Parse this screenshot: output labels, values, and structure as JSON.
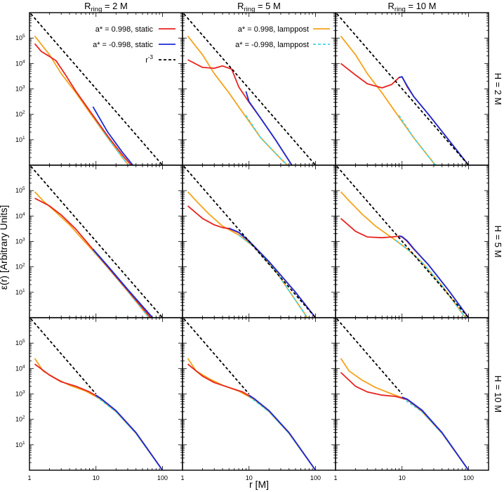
{
  "figure": {
    "ylabel": "ε(r) [Arbitrary Units]",
    "xlabel": "r [M]",
    "column_titles": [
      {
        "main": "R",
        "sub": "ring",
        "rest": " = 2 M"
      },
      {
        "main": "R",
        "sub": "ring",
        "rest": " = 5 M"
      },
      {
        "main": "R",
        "sub": "ring",
        "rest": " = 10 M"
      }
    ],
    "row_titles": [
      "H = 2 M",
      "H = 5 M",
      "H = 10 M"
    ],
    "x_ticks": [
      "1",
      "10",
      "100"
    ],
    "y_ticks": [
      {
        "base": "10",
        "exp": "5"
      },
      {
        "base": "10",
        "exp": "4"
      },
      {
        "base": "10",
        "exp": "3"
      },
      {
        "base": "10",
        "exp": "2"
      },
      {
        "base": "10",
        "exp": "1"
      }
    ]
  },
  "legend": [
    {
      "label": "a* = 0.998, static",
      "color": "#e8231f",
      "style": "solid"
    },
    {
      "label": "a* = -0.998, static",
      "color": "#1a2bd6",
      "style": "solid"
    },
    {
      "label": "a* = 0.998, lamppost",
      "color": "#f5a21a",
      "style": "solid"
    },
    {
      "label": "a* = -0.998, lamppost",
      "color": "#3fd6e0",
      "style": "dashed"
    },
    {
      "label": "r",
      "sup": "-3",
      "color": "#000000",
      "style": "dashed"
    }
  ],
  "chart_data": {
    "type": "line",
    "xscale": "log",
    "yscale": "log",
    "xlim": [
      1,
      200
    ],
    "ylim": [
      1,
      1000000
    ],
    "xlabel": "r [M]",
    "ylabel": "ε(r) [Arbitrary Units]",
    "panels": [
      {
        "R_ring": 2,
        "H": 2,
        "series": [
          {
            "name": "a* = 0.998, static",
            "x": [
              1.2,
              1.5,
              2,
              2.5,
              3.5,
              5,
              8,
              15,
              25,
              40
            ],
            "y": [
              60000,
              30000,
              19000,
              13000,
              3500,
              800,
              140,
              14,
              2.5,
              0.6
            ]
          },
          {
            "name": "a* = -0.998, static",
            "x": [
              9,
              15,
              25,
              40
            ],
            "y": [
              200,
              20,
              3.2,
              0.7
            ]
          },
          {
            "name": "a* = 0.998, lamppost",
            "x": [
              1.2,
              2,
              3,
              5,
              8,
              15,
              25,
              38
            ],
            "y": [
              120000,
              22000,
              4000,
              700,
              120,
              12,
              2,
              0.5
            ]
          },
          {
            "name": "a* = -0.998, lamppost",
            "x": [
              9,
              15,
              25,
              38
            ],
            "y": [
              90,
              12,
              2,
              0.5
            ]
          },
          {
            "name": "r^-3",
            "x": [
              1.05,
              100
            ],
            "y": [
              900000,
              1
            ]
          }
        ]
      },
      {
        "R_ring": 5,
        "H": 2,
        "series": [
          {
            "name": "a* = 0.998, static",
            "x": [
              1.2,
              2,
              3,
              4,
              5.5,
              7,
              10,
              15,
              25,
              50
            ],
            "y": [
              14000,
              7000,
              6500,
              8000,
              6000,
              1200,
              300,
              70,
              10,
              0.6
            ]
          },
          {
            "name": "a* = -0.998, static",
            "x": [
              9,
              10,
              15,
              25,
              50
            ],
            "y": [
              800,
              320,
              70,
              10,
              0.6
            ]
          },
          {
            "name": "a* = 0.998, lamppost",
            "x": [
              1.2,
              2,
              3,
              5,
              8,
              15,
              30,
              55
            ],
            "y": [
              120000,
              22000,
              4000,
              700,
              120,
              12,
              1.8,
              0.4
            ]
          },
          {
            "name": "a* = -0.998, lamppost",
            "x": [
              9,
              15,
              30,
              55
            ],
            "y": [
              90,
              12,
              1.8,
              0.4
            ]
          },
          {
            "name": "r^-3",
            "x": [
              1.05,
              100
            ],
            "y": [
              900000,
              1
            ]
          }
        ]
      },
      {
        "R_ring": 10,
        "H": 2,
        "series": [
          {
            "name": "a* = 0.998, static",
            "x": [
              1.2,
              2,
              3,
              5,
              7,
              9,
              10,
              12,
              15,
              25,
              50,
              100
            ],
            "y": [
              10000,
              3500,
              1600,
              1100,
              1500,
              2800,
              3000,
              1200,
              500,
              100,
              10,
              1
            ]
          },
          {
            "name": "a* = -0.998, static",
            "x": [
              9,
              10,
              12,
              15,
              25,
              50,
              100
            ],
            "y": [
              2800,
              3000,
              1300,
              500,
              100,
              10,
              1
            ]
          },
          {
            "name": "a* = 0.998, lamppost",
            "x": [
              1.2,
              2,
              3,
              5,
              8,
              15,
              30,
              40
            ],
            "y": [
              120000,
              22000,
              4000,
              700,
              120,
              12,
              1.2,
              0.6
            ]
          },
          {
            "name": "a* = -0.998, lamppost",
            "x": [
              9,
              15,
              30,
              40
            ],
            "y": [
              90,
              12,
              1.2,
              0.6
            ]
          },
          {
            "name": "r^-3",
            "x": [
              1.05,
              100
            ],
            "y": [
              900000,
              1
            ]
          }
        ]
      },
      {
        "R_ring": 2,
        "H": 5,
        "series": [
          {
            "name": "a* = 0.998, static",
            "x": [
              1.2,
              2,
              3,
              5,
              8,
              15,
              30,
              75
            ],
            "y": [
              50000,
              25000,
              11000,
              3000,
              700,
              100,
              12,
              0.7
            ]
          },
          {
            "name": "a* = -0.998, static",
            "x": [
              9,
              15,
              30,
              80
            ],
            "y": [
              500,
              110,
              13,
              0.7
            ]
          },
          {
            "name": "a* = 0.998, lamppost",
            "x": [
              1.2,
              1.6,
              2.5,
              4,
              8,
              15,
              30,
              70
            ],
            "y": [
              90000,
              40000,
              14000,
              4500,
              600,
              95,
              11,
              0.7
            ]
          },
          {
            "name": "a* = -0.998, lamppost",
            "x": [
              9,
              15,
              30,
              70
            ],
            "y": [
              450,
              95,
              11,
              0.7
            ]
          },
          {
            "name": "r^-3",
            "x": [
              1.05,
              100
            ],
            "y": [
              900000,
              1
            ]
          }
        ]
      },
      {
        "R_ring": 5,
        "H": 5,
        "series": [
          {
            "name": "a* = 0.998, static",
            "x": [
              1.2,
              2,
              3,
              4,
              5,
              7,
              10,
              20,
              50,
              100
            ],
            "y": [
              25000,
              8000,
              4500,
              3500,
              3200,
              2200,
              1000,
              160,
              10,
              1
            ]
          },
          {
            "name": "a* = -0.998, static",
            "x": [
              5,
              7,
              10,
              20,
              50,
              100
            ],
            "y": [
              3300,
              2300,
              1050,
              160,
              10,
              1
            ]
          },
          {
            "name": "a* = 0.998, lamppost",
            "x": [
              1.2,
              1.6,
              2.5,
              4,
              7,
              12,
              25,
              80
            ],
            "y": [
              90000,
              40000,
              12000,
              4000,
              1800,
              600,
              70,
              0.8
            ]
          },
          {
            "name": "a* = -0.998, lamppost",
            "x": [
              7,
              12,
              25,
              80
            ],
            "y": [
              1800,
              600,
              70,
              0.8
            ]
          },
          {
            "name": "r^-3",
            "x": [
              1.05,
              100
            ],
            "y": [
              900000,
              1
            ]
          }
        ]
      },
      {
        "R_ring": 10,
        "H": 5,
        "series": [
          {
            "name": "a* = 0.998, static",
            "x": [
              1.2,
              2,
              3,
              5,
              7,
              9,
              10,
              12,
              15,
              25,
              50,
              100
            ],
            "y": [
              8000,
              2500,
              1500,
              1400,
              1500,
              1600,
              1500,
              1000,
              500,
              120,
              12,
              1
            ]
          },
          {
            "name": "a* = -0.998, static",
            "x": [
              9,
              10,
              12,
              15,
              25,
              50,
              100
            ],
            "y": [
              1650,
              1550,
              1050,
              520,
              120,
              12,
              1
            ]
          },
          {
            "name": "a* = 0.998, lamppost",
            "x": [
              1.2,
              1.6,
              2.5,
              4,
              8,
              12,
              20,
              40,
              90
            ],
            "y": [
              90000,
              40000,
              12000,
              4000,
              1100,
              500,
              150,
              18,
              1
            ]
          },
          {
            "name": "a* = -0.998, lamppost",
            "x": [
              8,
              12,
              20,
              40,
              90
            ],
            "y": [
              1100,
              500,
              150,
              18,
              1
            ]
          },
          {
            "name": "r^-3",
            "x": [
              1.05,
              100
            ],
            "y": [
              900000,
              1
            ]
          }
        ]
      },
      {
        "R_ring": 2,
        "H": 10,
        "series": [
          {
            "name": "a* = 0.998, static",
            "x": [
              1.2,
              2,
              3,
              5,
              8,
              12,
              20,
              40,
              100
            ],
            "y": [
              15000,
              5500,
              3000,
              2000,
              1200,
              650,
              220,
              30,
              1
            ]
          },
          {
            "name": "a* = -0.998, static",
            "x": [
              10,
              12,
              20,
              40,
              110
            ],
            "y": [
              900,
              650,
              220,
              30,
              0.7
            ]
          },
          {
            "name": "a* = 0.998, lamppost",
            "x": [
              1.2,
              1.6,
              2.5,
              4,
              7,
              12,
              20,
              40,
              100
            ],
            "y": [
              25000,
              8000,
              4000,
              2200,
              1300,
              600,
              200,
              28,
              1
            ]
          },
          {
            "name": "a* = -0.998, lamppost",
            "x": [
              10,
              20,
              40,
              100
            ],
            "y": [
              800,
              200,
              28,
              1
            ]
          },
          {
            "name": "r^-3",
            "x": [
              1.05,
              10
            ],
            "y": [
              900000,
              1000
            ]
          }
        ]
      },
      {
        "R_ring": 5,
        "H": 10,
        "series": [
          {
            "name": "a* = 0.998, static",
            "x": [
              1.2,
              2,
              3,
              5,
              8,
              12,
              20,
              40,
              100
            ],
            "y": [
              15000,
              5000,
              2800,
              1800,
              1200,
              650,
              220,
              30,
              1
            ]
          },
          {
            "name": "a* = -0.998, static",
            "x": [
              10,
              12,
              20,
              40,
              110
            ],
            "y": [
              900,
              650,
              220,
              30,
              0.7
            ]
          },
          {
            "name": "a* = 0.998, lamppost",
            "x": [
              1.2,
              1.6,
              2.5,
              4,
              7,
              12,
              20,
              40,
              100
            ],
            "y": [
              25000,
              8000,
              4000,
              2200,
              1300,
              600,
              200,
              28,
              1
            ]
          },
          {
            "name": "a* = -0.998, lamppost",
            "x": [
              10,
              20,
              40,
              100
            ],
            "y": [
              800,
              200,
              28,
              1
            ]
          },
          {
            "name": "r^-3",
            "x": [
              1.05,
              10
            ],
            "y": [
              900000,
              1000
            ]
          }
        ]
      },
      {
        "R_ring": 10,
        "H": 10,
        "series": [
          {
            "name": "a* = 0.998, static",
            "x": [
              1.2,
              2,
              3,
              5,
              8,
              12,
              20,
              40,
              100
            ],
            "y": [
              7000,
              2000,
              1200,
              900,
              800,
              600,
              220,
              30,
              1
            ]
          },
          {
            "name": "a* = -0.998, static",
            "x": [
              10,
              12,
              20,
              40,
              110
            ],
            "y": [
              750,
              620,
              230,
              30,
              0.7
            ]
          },
          {
            "name": "a* = 0.998, lamppost",
            "x": [
              1.2,
              1.6,
              2.5,
              4,
              7,
              12,
              20,
              40,
              100
            ],
            "y": [
              25000,
              8000,
              3500,
              1800,
              1000,
              600,
              200,
              28,
              1
            ]
          },
          {
            "name": "a* = -0.998, lamppost",
            "x": [
              10,
              20,
              40,
              100
            ],
            "y": [
              700,
              200,
              28,
              1
            ]
          },
          {
            "name": "r^-3",
            "x": [
              1.05,
              10
            ],
            "y": [
              900000,
              1000
            ]
          }
        ]
      }
    ]
  }
}
